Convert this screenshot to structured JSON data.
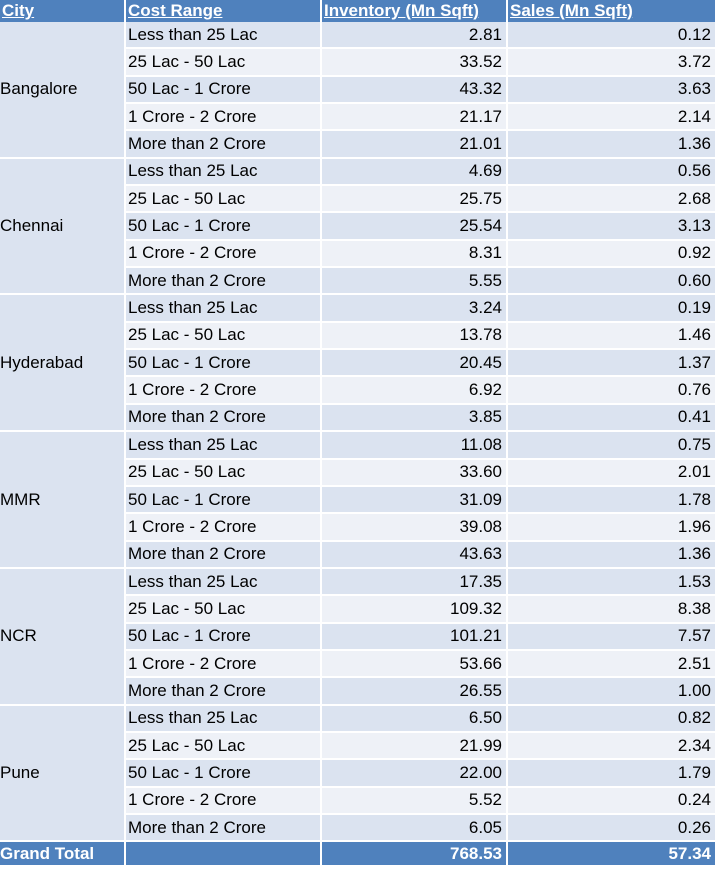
{
  "headers": {
    "city": "City",
    "cost_range": "Cost Range",
    "inventory": "Inventory (Mn Sqft)",
    "sales": "Sales (Mn Sqft)"
  },
  "groups": [
    {
      "city": "Bangalore",
      "rows": [
        {
          "range": "Less than 25 Lac",
          "inventory": "2.81",
          "sales": "0.12"
        },
        {
          "range": "25 Lac - 50 Lac",
          "inventory": "33.52",
          "sales": "3.72"
        },
        {
          "range": "50 Lac - 1 Crore",
          "inventory": "43.32",
          "sales": "3.63"
        },
        {
          "range": "1 Crore - 2 Crore",
          "inventory": "21.17",
          "sales": "2.14"
        },
        {
          "range": "More than 2 Crore",
          "inventory": "21.01",
          "sales": "1.36"
        }
      ]
    },
    {
      "city": "Chennai",
      "rows": [
        {
          "range": "Less than 25 Lac",
          "inventory": "4.69",
          "sales": "0.56"
        },
        {
          "range": "25 Lac - 50 Lac",
          "inventory": "25.75",
          "sales": "2.68"
        },
        {
          "range": "50 Lac - 1 Crore",
          "inventory": "25.54",
          "sales": "3.13"
        },
        {
          "range": "1 Crore - 2 Crore",
          "inventory": "8.31",
          "sales": "0.92"
        },
        {
          "range": "More than 2 Crore",
          "inventory": "5.55",
          "sales": "0.60"
        }
      ]
    },
    {
      "city": "Hyderabad",
      "rows": [
        {
          "range": "Less than 25 Lac",
          "inventory": "3.24",
          "sales": "0.19"
        },
        {
          "range": "25 Lac - 50 Lac",
          "inventory": "13.78",
          "sales": "1.46"
        },
        {
          "range": "50 Lac - 1 Crore",
          "inventory": "20.45",
          "sales": "1.37"
        },
        {
          "range": "1 Crore - 2 Crore",
          "inventory": "6.92",
          "sales": "0.76"
        },
        {
          "range": "More than 2 Crore",
          "inventory": "3.85",
          "sales": "0.41"
        }
      ]
    },
    {
      "city": "MMR",
      "rows": [
        {
          "range": "Less than 25 Lac",
          "inventory": "11.08",
          "sales": "0.75"
        },
        {
          "range": "25 Lac - 50 Lac",
          "inventory": "33.60",
          "sales": "2.01"
        },
        {
          "range": "50 Lac - 1 Crore",
          "inventory": "31.09",
          "sales": "1.78"
        },
        {
          "range": "1 Crore - 2 Crore",
          "inventory": "39.08",
          "sales": "1.96"
        },
        {
          "range": "More than 2 Crore",
          "inventory": "43.63",
          "sales": "1.36"
        }
      ]
    },
    {
      "city": "NCR",
      "rows": [
        {
          "range": "Less than 25 Lac",
          "inventory": "17.35",
          "sales": "1.53"
        },
        {
          "range": "25 Lac - 50 Lac",
          "inventory": "109.32",
          "sales": "8.38"
        },
        {
          "range": "50 Lac - 1 Crore",
          "inventory": "101.21",
          "sales": "7.57"
        },
        {
          "range": "1 Crore - 2 Crore",
          "inventory": "53.66",
          "sales": "2.51"
        },
        {
          "range": "More than 2 Crore",
          "inventory": "26.55",
          "sales": "1.00"
        }
      ]
    },
    {
      "city": "Pune",
      "rows": [
        {
          "range": "Less than 25 Lac",
          "inventory": "6.50",
          "sales": "0.82"
        },
        {
          "range": "25 Lac - 50 Lac",
          "inventory": "21.99",
          "sales": "2.34"
        },
        {
          "range": "50 Lac - 1 Crore",
          "inventory": "22.00",
          "sales": "1.79"
        },
        {
          "range": "1 Crore - 2 Crore",
          "inventory": "5.52",
          "sales": "0.24"
        },
        {
          "range": "More than 2 Crore",
          "inventory": "6.05",
          "sales": "0.26"
        }
      ]
    }
  ],
  "total": {
    "label": "Grand Total",
    "inventory": "768.53",
    "sales": "57.34"
  },
  "colors": {
    "header_bg": "#4f81bd",
    "band_dark": "#dbe3f0",
    "band_light": "#eef1f7"
  }
}
